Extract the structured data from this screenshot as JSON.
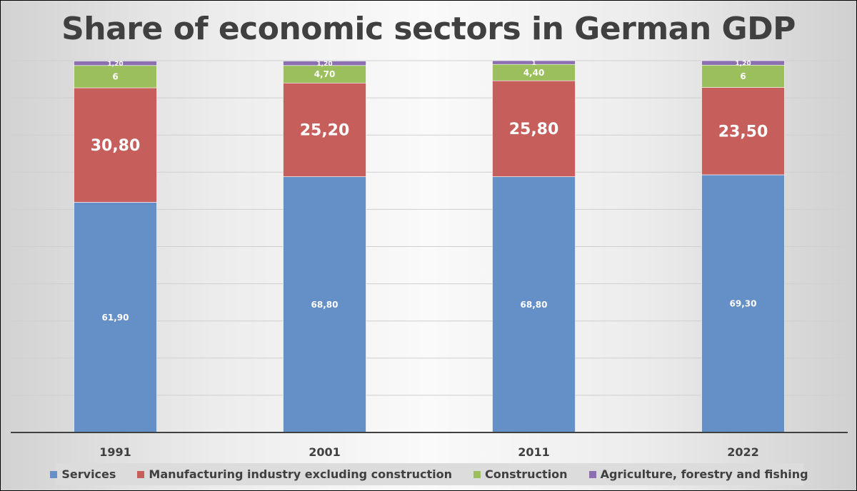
{
  "chart_data": {
    "type": "bar",
    "stacked": true,
    "title": "Share of economic sectors in German GDP",
    "categories": [
      "1991",
      "2001",
      "2011",
      "2022"
    ],
    "series": [
      {
        "name": "Services",
        "color": "#6590c7",
        "values": [
          61.9,
          68.8,
          68.8,
          69.3
        ],
        "labels": [
          "61,90",
          "68,80",
          "68,80",
          "69,30"
        ]
      },
      {
        "name": "Manufacturing industry excluding construction",
        "color": "#c65f5c",
        "values": [
          30.8,
          25.2,
          25.8,
          23.5
        ],
        "labels": [
          "30,80",
          "25,20",
          "25,80",
          "23,50"
        ]
      },
      {
        "name": "Construction",
        "color": "#9bbf5c",
        "values": [
          6,
          4.7,
          4.4,
          6
        ],
        "labels": [
          "6",
          "4,70",
          "4,40",
          "6"
        ]
      },
      {
        "name": "Agriculture, forestry and fishing",
        "color": "#8c6fb0",
        "values": [
          1.2,
          1.2,
          1,
          1.2
        ],
        "labels": [
          "1,20",
          "1,20",
          "1",
          "1,20"
        ]
      }
    ],
    "ylim": [
      0,
      100
    ],
    "grid": true,
    "xlabel": "",
    "ylabel": "",
    "legend_position": "bottom"
  }
}
